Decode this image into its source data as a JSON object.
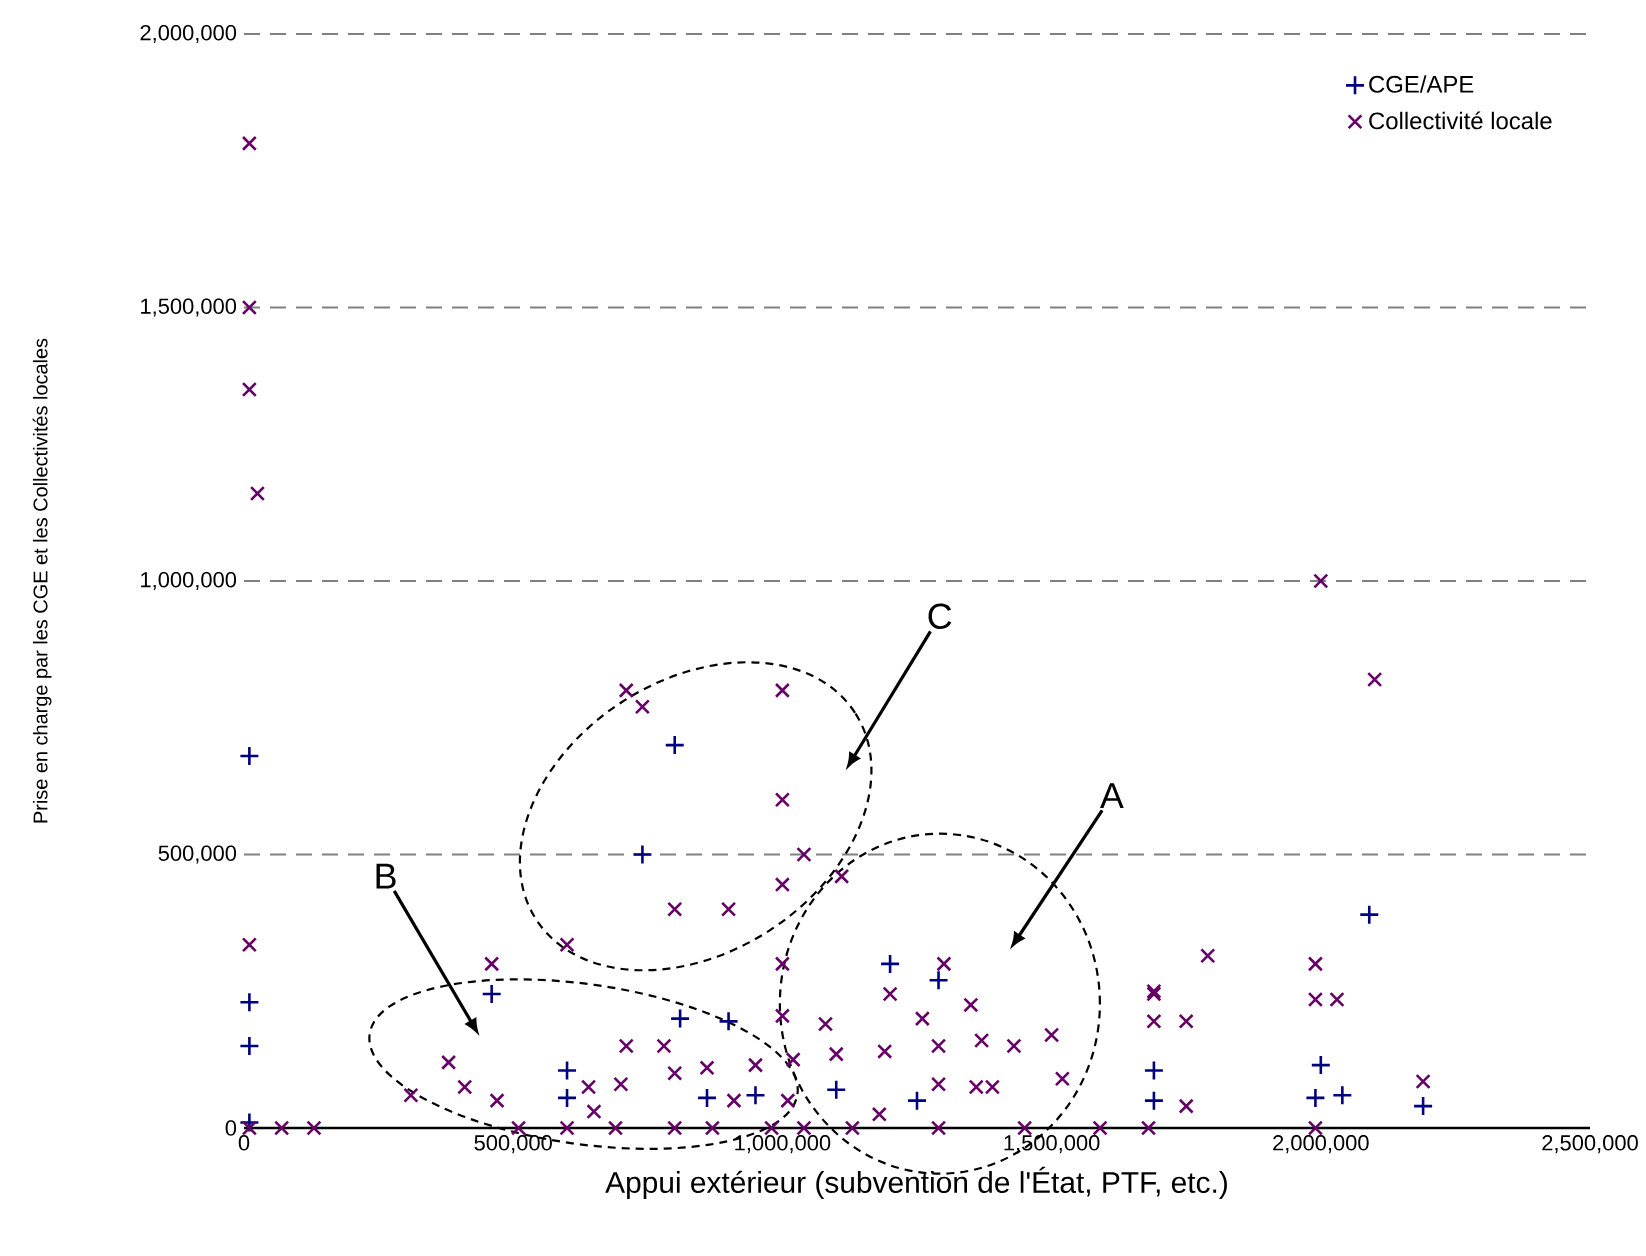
{
  "chart_data": {
    "type": "scatter",
    "xlabel": "Appui extérieur (subvention de l'État, PTF, etc.)",
    "ylabel": "Prise en charge par les CGE et les Collectivités locales",
    "xlim": [
      0,
      2500000
    ],
    "ylim": [
      0,
      2000000
    ],
    "xticks": [
      0,
      {
        "value": 500000,
        "label": "500,000"
      },
      {
        "value": 1000000,
        "label": "1,000,000"
      },
      {
        "value": 1500000,
        "label": "1,500,000"
      },
      {
        "value": 2000000,
        "label": "2,000,000"
      },
      {
        "value": 2500000,
        "label": "2,500,000"
      }
    ],
    "yticks": [
      0,
      {
        "value": 500000,
        "label": "500,000"
      },
      {
        "value": 1000000,
        "label": "1,000,000"
      },
      {
        "value": 1500000,
        "label": "1,500,000"
      },
      {
        "value": 2000000,
        "label": "2,000,000"
      }
    ],
    "grid": "y",
    "legend": "top right",
    "series": [
      {
        "name": "CGE/APE",
        "color": "#000080",
        "marker": "plus",
        "x": [
          10000,
          10000,
          10000,
          10000,
          800000,
          740000,
          460000,
          810000,
          900000,
          600000,
          600000,
          860000,
          950000,
          1200000,
          1100000,
          1250000,
          1690000,
          1690000,
          2090000,
          2000000,
          1990000,
          2040000,
          2190000,
          1290000
        ],
        "values": [
          680000,
          230000,
          150000,
          10000,
          700000,
          500000,
          245000,
          200000,
          195000,
          105000,
          55000,
          55000,
          60000,
          300000,
          70000,
          50000,
          105000,
          50000,
          390000,
          115000,
          55000,
          60000,
          40000,
          270000
        ]
      },
      {
        "name": "Collectivité locale",
        "color": "#660066",
        "marker": "cross",
        "x": [
          10000,
          10000,
          10000,
          25000,
          10000,
          10000,
          70000,
          130000,
          1000000,
          1040000,
          1000000,
          800000,
          900000,
          600000,
          460000,
          1000000,
          1000000,
          710000,
          780000,
          800000,
          860000,
          950000,
          700000,
          640000,
          310000,
          410000,
          470000,
          910000,
          1010000,
          650000,
          380000,
          510000,
          600000,
          690000,
          800000,
          870000,
          980000,
          1040000,
          710000,
          740000,
          1000000,
          1110000,
          1300000,
          1200000,
          1350000,
          1260000,
          1080000,
          1190000,
          1290000,
          1430000,
          1370000,
          1500000,
          1100000,
          1020000,
          1290000,
          1390000,
          1520000,
          1360000,
          1180000,
          1130000,
          1290000,
          1450000,
          1590000,
          1680000,
          1690000,
          1690000,
          2000000,
          2100000,
          1790000,
          1990000,
          1690000,
          1750000,
          1990000,
          2030000,
          2190000,
          1750000,
          1990000
        ],
        "values": [
          1800000,
          1500000,
          1350000,
          1160000,
          335000,
          0,
          0,
          0,
          600000,
          500000,
          445000,
          400000,
          400000,
          335000,
          300000,
          300000,
          205000,
          150000,
          150000,
          100000,
          110000,
          115000,
          80000,
          75000,
          60000,
          75000,
          50000,
          50000,
          50000,
          30000,
          120000,
          0,
          0,
          0,
          0,
          0,
          0,
          0,
          800000,
          770000,
          800000,
          460000,
          300000,
          245000,
          225000,
          200000,
          190000,
          140000,
          150000,
          150000,
          160000,
          170000,
          135000,
          125000,
          80000,
          75000,
          90000,
          75000,
          25000,
          0,
          0,
          0,
          0,
          0,
          245000,
          195000,
          1000000,
          820000,
          315000,
          300000,
          250000,
          195000,
          235000,
          235000,
          85000,
          40000,
          0
        ]
      }
    ],
    "annotations": [
      "A",
      "B",
      "C"
    ]
  }
}
